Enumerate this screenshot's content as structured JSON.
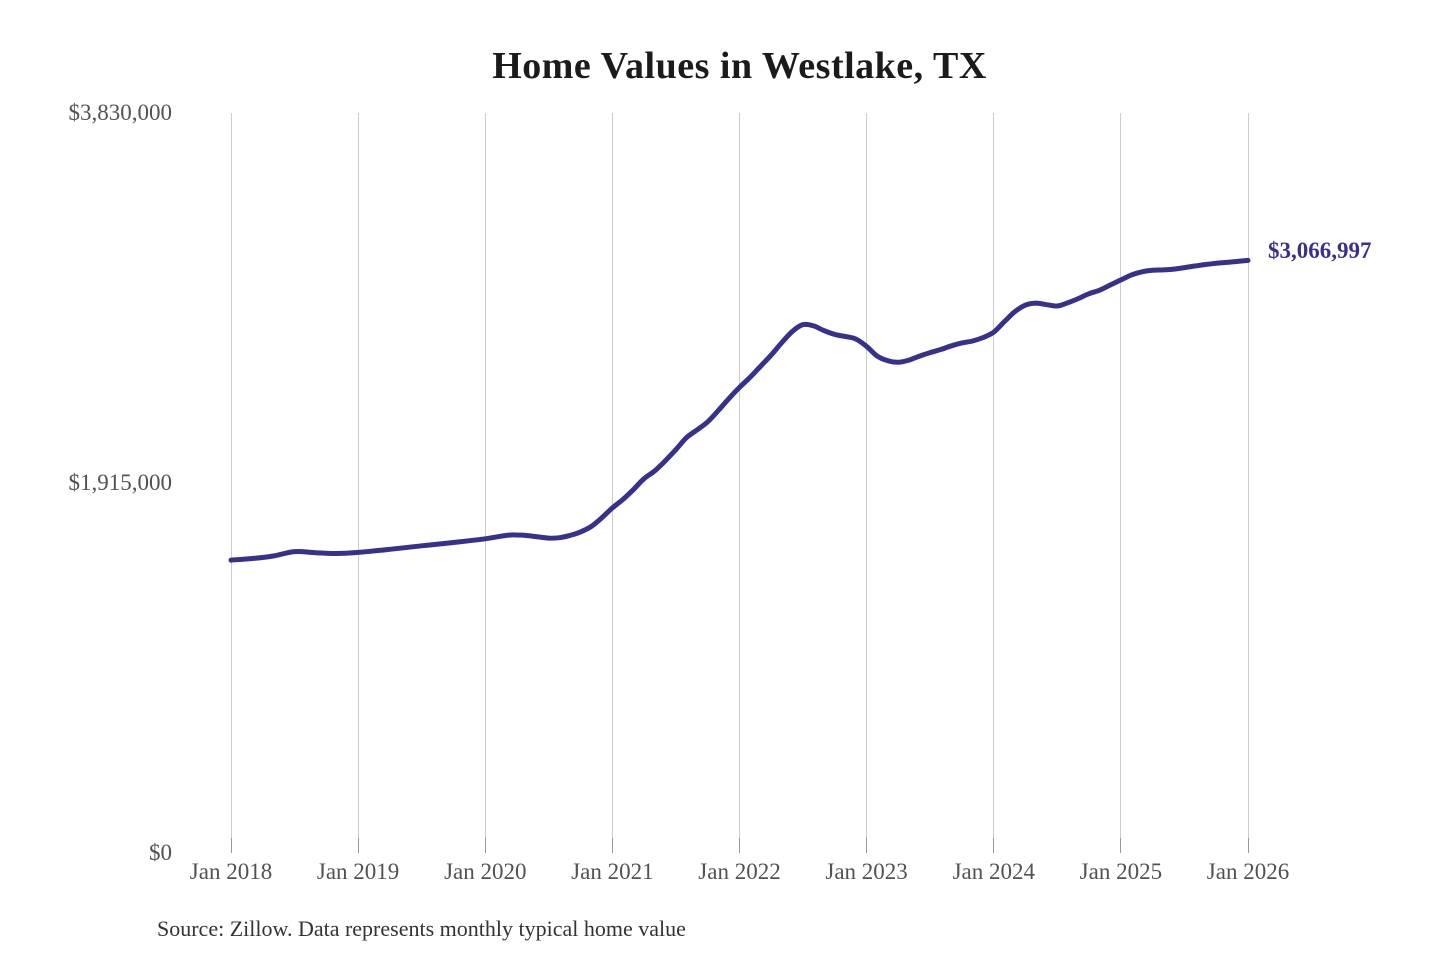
{
  "title": "Home Values in Westlake, TX",
  "source": "Source: Zillow. Data represents monthly typical home value",
  "annotation": {
    "text": "$3,066,997"
  },
  "colors": {
    "line": "#37318c",
    "annotation": "#37318c",
    "grid": "#cccccc",
    "tick": "#999999",
    "axis_label": "#525252",
    "title": "#1b1b1b",
    "source": "#333333",
    "background": "#ffffff"
  },
  "chart_data": {
    "type": "line",
    "title": "Home Values in Westlake, TX",
    "xlabel": "",
    "ylabel": "",
    "grid": "vertical-only",
    "legend": "none",
    "x_unit": "months since Jan 2018",
    "x_range_months": [
      0,
      96
    ],
    "ylim": [
      0,
      3830000
    ],
    "x_ticks": [
      {
        "label": "Jan 2018",
        "month": 0
      },
      {
        "label": "Jan 2019",
        "month": 12
      },
      {
        "label": "Jan 2020",
        "month": 24
      },
      {
        "label": "Jan 2021",
        "month": 36
      },
      {
        "label": "Jan 2022",
        "month": 48
      },
      {
        "label": "Jan 2023",
        "month": 60
      },
      {
        "label": "Jan 2024",
        "month": 72
      },
      {
        "label": "Jan 2025",
        "month": 84
      },
      {
        "label": "Jan 2026",
        "month": 96
      }
    ],
    "y_ticks": [
      {
        "label": "$0",
        "value": 0
      },
      {
        "label": "$1,915,000",
        "value": 1915000
      },
      {
        "label": "$3,830,000",
        "value": 3830000
      }
    ],
    "series": [
      {
        "name": "Typical home value",
        "end_label": "$3,066,997",
        "end_value": 3066997,
        "points": [
          [
            0,
            1516000
          ],
          [
            2,
            1524000
          ],
          [
            4,
            1537000
          ],
          [
            6,
            1560000
          ],
          [
            8,
            1554000
          ],
          [
            10,
            1550000
          ],
          [
            12,
            1556000
          ],
          [
            15,
            1572000
          ],
          [
            18,
            1590000
          ],
          [
            21,
            1607000
          ],
          [
            24,
            1626000
          ],
          [
            26,
            1644000
          ],
          [
            27,
            1646000
          ],
          [
            28,
            1643000
          ],
          [
            30,
            1630000
          ],
          [
            31,
            1632000
          ],
          [
            32,
            1644000
          ],
          [
            33,
            1662000
          ],
          [
            34,
            1690000
          ],
          [
            35,
            1735000
          ],
          [
            36,
            1786000
          ],
          [
            37,
            1830000
          ],
          [
            38,
            1882000
          ],
          [
            39,
            1938000
          ],
          [
            40,
            1978000
          ],
          [
            41,
            2030000
          ],
          [
            42,
            2088000
          ],
          [
            43,
            2150000
          ],
          [
            44,
            2190000
          ],
          [
            45,
            2232000
          ],
          [
            46,
            2290000
          ],
          [
            47,
            2352000
          ],
          [
            48,
            2410000
          ],
          [
            49,
            2462000
          ],
          [
            50,
            2520000
          ],
          [
            51,
            2578000
          ],
          [
            52,
            2642000
          ],
          [
            53,
            2700000
          ],
          [
            54,
            2735000
          ],
          [
            55,
            2728000
          ],
          [
            56,
            2703000
          ],
          [
            57,
            2684000
          ],
          [
            58,
            2673000
          ],
          [
            59,
            2660000
          ],
          [
            60,
            2622000
          ],
          [
            61,
            2572000
          ],
          [
            62,
            2548000
          ],
          [
            63,
            2540000
          ],
          [
            64,
            2551000
          ],
          [
            65,
            2572000
          ],
          [
            66,
            2590000
          ],
          [
            67,
            2606000
          ],
          [
            68,
            2625000
          ],
          [
            69,
            2640000
          ],
          [
            70,
            2650000
          ],
          [
            71,
            2668000
          ],
          [
            72,
            2696000
          ],
          [
            73,
            2750000
          ],
          [
            74,
            2802000
          ],
          [
            75,
            2836000
          ],
          [
            76,
            2846000
          ],
          [
            77,
            2838000
          ],
          [
            78,
            2831000
          ],
          [
            79,
            2848000
          ],
          [
            80,
            2870000
          ],
          [
            81,
            2895000
          ],
          [
            82,
            2913000
          ],
          [
            83,
            2940000
          ],
          [
            84,
            2966000
          ],
          [
            85,
            2992000
          ],
          [
            86,
            3008000
          ],
          [
            87,
            3016000
          ],
          [
            88,
            3018000
          ],
          [
            89,
            3022000
          ],
          [
            90,
            3030000
          ],
          [
            91,
            3038000
          ],
          [
            92,
            3046000
          ],
          [
            93,
            3052000
          ],
          [
            94,
            3057000
          ],
          [
            95,
            3062000
          ],
          [
            96,
            3066997
          ]
        ]
      }
    ]
  }
}
